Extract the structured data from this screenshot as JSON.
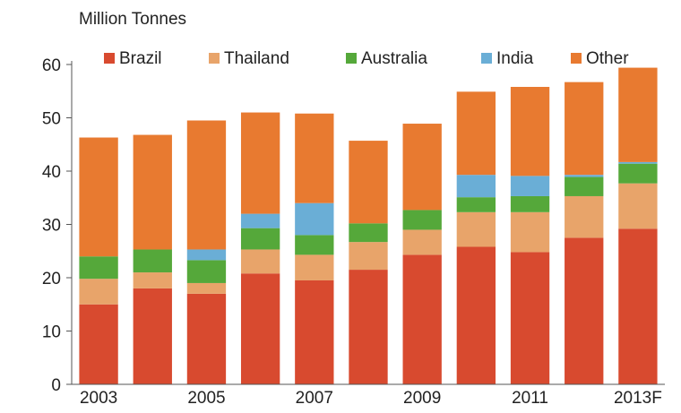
{
  "chart_data": {
    "type": "bar",
    "stacked": true,
    "title": "Million Tonnes",
    "xlabel": "",
    "ylabel": "",
    "ylim": [
      0,
      60
    ],
    "yticks": [
      0,
      10,
      20,
      30,
      40,
      50,
      60
    ],
    "categories": [
      "2003",
      "2004",
      "2005",
      "2006",
      "2007",
      "2008",
      "2009",
      "2010",
      "2011",
      "2012",
      "2013F"
    ],
    "xtick_labels": [
      "2003",
      "",
      "2005",
      "",
      "2007",
      "",
      "2009",
      "",
      "2011",
      "",
      "2013F"
    ],
    "legend_position": "top",
    "grid": false,
    "series": [
      {
        "name": "Brazil",
        "color": "#d84a2f",
        "values": [
          15.0,
          18.0,
          17.0,
          20.8,
          19.5,
          21.5,
          24.3,
          25.8,
          24.8,
          27.5,
          29.2
        ]
      },
      {
        "name": "Thailand",
        "color": "#e8a46a",
        "values": [
          4.8,
          3.0,
          2.0,
          4.5,
          4.8,
          5.2,
          4.7,
          6.5,
          7.5,
          7.8,
          8.5
        ]
      },
      {
        "name": "Australia",
        "color": "#55a83a",
        "values": [
          4.2,
          4.3,
          4.3,
          4.0,
          3.7,
          3.5,
          3.7,
          2.8,
          3.0,
          3.6,
          3.7
        ]
      },
      {
        "name": "India",
        "color": "#6aaed6",
        "values": [
          0,
          0,
          2.0,
          2.7,
          6.0,
          0,
          0,
          4.2,
          3.8,
          0.4,
          0.3
        ]
      },
      {
        "name": "Other",
        "color": "#e87a30",
        "values": [
          22.3,
          21.5,
          24.2,
          19.0,
          16.8,
          15.5,
          16.2,
          15.6,
          16.7,
          17.4,
          17.7
        ]
      }
    ]
  }
}
